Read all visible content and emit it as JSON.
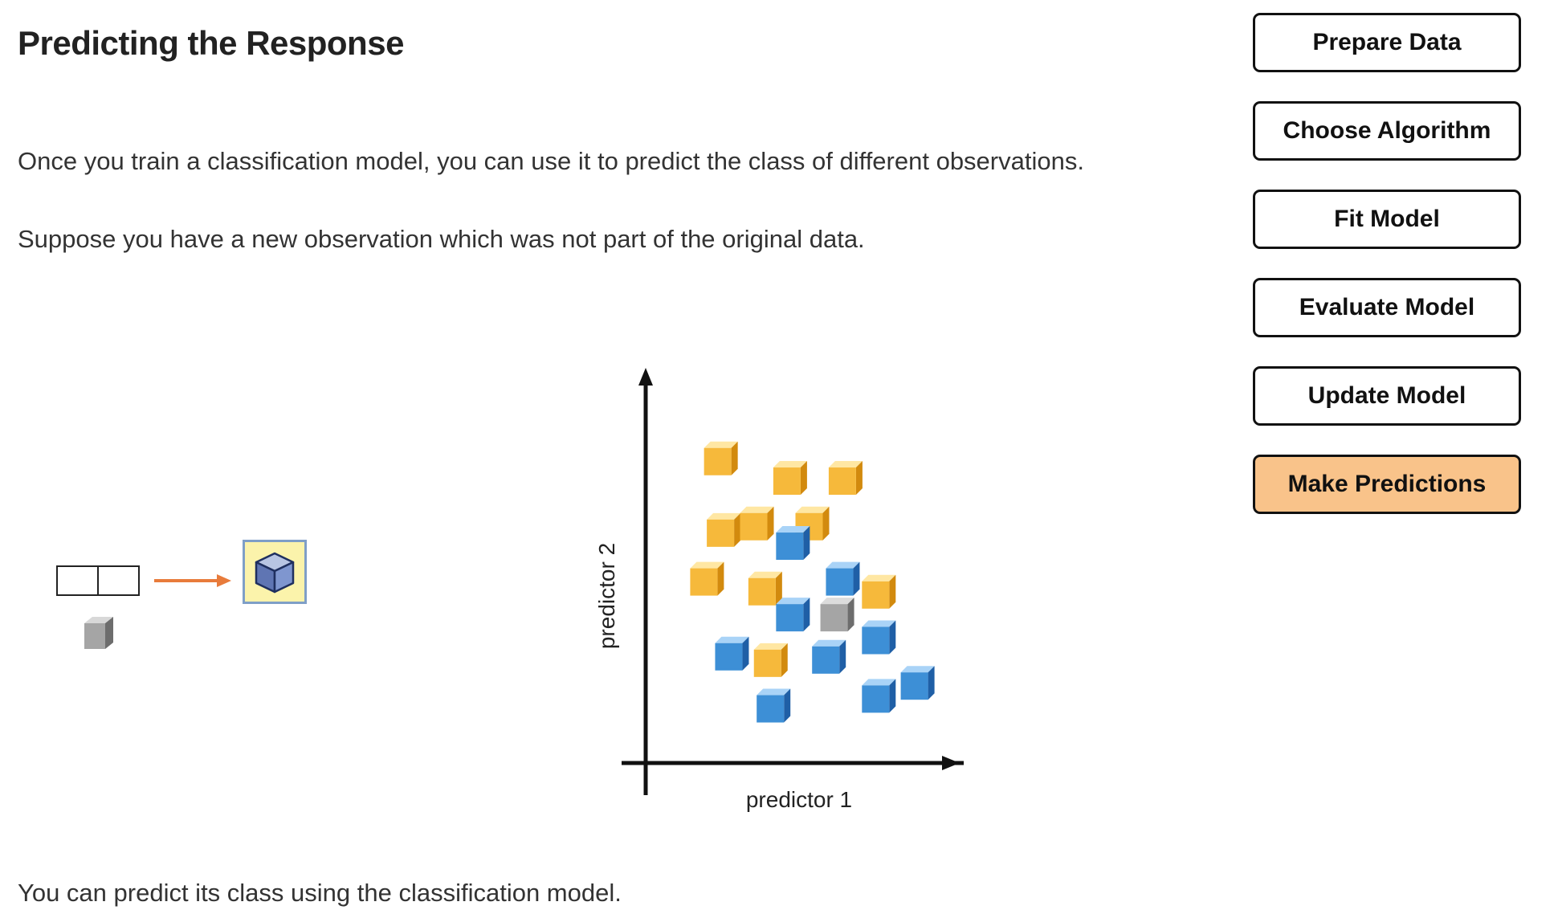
{
  "page": {
    "title": "Predicting the Response",
    "paragraphs": [
      "Once you train a classification model, you can use it to predict the class of different observations.",
      "Suppose you have a new observation which was not part of the original data.",
      "You can predict its class using the classification model."
    ]
  },
  "steps": [
    {
      "label": "Prepare Data",
      "active": false
    },
    {
      "label": "Choose Algorithm",
      "active": false
    },
    {
      "label": "Fit Model",
      "active": false
    },
    {
      "label": "Evaluate Model",
      "active": false
    },
    {
      "label": "Update Model",
      "active": false
    },
    {
      "label": "Make Predictions",
      "active": true
    }
  ],
  "colors": {
    "active_step": "#f9c38a",
    "class_yellow": "#f6b93b",
    "class_blue": "#3d8fd6",
    "new_observation": "#9e9e9e",
    "arrow": "#e87b3b"
  },
  "icons": {
    "model": "model-cube-icon",
    "observation": "gray-cube-icon",
    "arrow": "right-arrow-icon"
  },
  "chart_data": {
    "type": "scatter",
    "xlabel": "predictor 1",
    "ylabel": "predictor 2",
    "xlim": [
      0,
      10
    ],
    "ylim": [
      0,
      10
    ],
    "grid": false,
    "series": [
      {
        "class": "yellow",
        "points": [
          [
            1.7,
            8.5
          ],
          [
            4.2,
            7.9
          ],
          [
            6.2,
            7.9
          ],
          [
            1.8,
            6.3
          ],
          [
            3.0,
            6.5
          ],
          [
            5.0,
            6.5
          ],
          [
            1.2,
            4.8
          ],
          [
            3.3,
            4.5
          ],
          [
            7.4,
            4.4
          ],
          [
            3.5,
            2.3
          ]
        ]
      },
      {
        "class": "blue",
        "points": [
          [
            4.3,
            5.9
          ],
          [
            6.1,
            4.8
          ],
          [
            4.3,
            3.7
          ],
          [
            7.4,
            3.0
          ],
          [
            2.1,
            2.5
          ],
          [
            5.6,
            2.4
          ],
          [
            8.8,
            1.6
          ],
          [
            7.4,
            1.2
          ],
          [
            3.6,
            0.9
          ]
        ]
      },
      {
        "class": "gray",
        "points": [
          [
            5.9,
            3.7
          ]
        ]
      }
    ]
  }
}
